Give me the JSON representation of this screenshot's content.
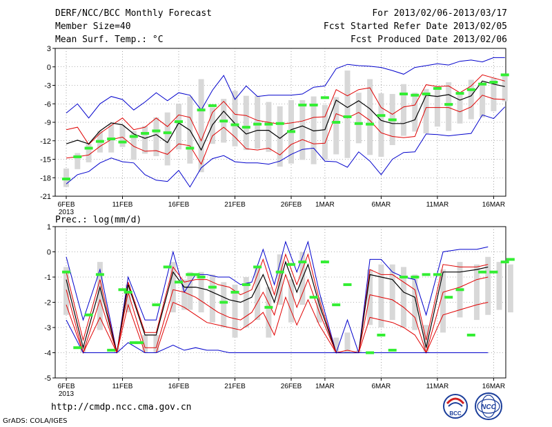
{
  "header": {
    "title": "DERF/NCC/BCC Monthly Forecast",
    "member_size": "Member Size=40",
    "variable": "Mean Surf. Temp.: °C",
    "forecast_period": "For 2013/02/06-2013/03/17",
    "refer_date": "Fcst Started Refer Date 2013/02/05",
    "produced_date": "Fcst Produced Date 2013/02/06"
  },
  "footer": {
    "url": "http://cmdp.ncc.cma.gov.cn",
    "credit": "GrADS: COLA/IGES",
    "logo_left_text": "BCC",
    "logo_right_text": "NCC"
  },
  "colors": {
    "ens_mean": "#000000",
    "spread": "#e00000",
    "extreme": "#0000cc",
    "bar": "#d8d8d8",
    "obs_marker": "#33ee33",
    "grid": "#666666"
  },
  "chart_data": [
    {
      "type": "line",
      "title": "Mean Surf. Temp.: °C",
      "x": "days 0-39 starting 2013/02/06",
      "x_tick_positions": [
        0,
        5,
        10,
        15,
        20,
        23,
        28,
        33,
        38
      ],
      "x_tick_labels": [
        "6FEB",
        "11FEB",
        "16FEB",
        "21FEB",
        "26FEB",
        "1MAR",
        "6MAR",
        "11MAR",
        "16MAR"
      ],
      "x_sub_label": "2013",
      "ylim": [
        -21,
        3
      ],
      "yticks": [
        3,
        0,
        -3,
        -6,
        -9,
        -12,
        -15,
        -18,
        -21
      ],
      "series": [
        {
          "name": "Max",
          "values": [
            -7.5,
            -6,
            -8.3,
            -6,
            -4.8,
            -5.3,
            -7,
            -5.7,
            -4.2,
            -5.5,
            -4.2,
            -4.6,
            -7,
            -3.8,
            -1.4,
            -5.3,
            -3.1,
            -4.8,
            -4.6,
            -4.6,
            -4.6,
            -4.4,
            -3.3,
            -3.1,
            -0.3,
            0.4,
            0.2,
            0.1,
            -0.1,
            -0.6,
            -1.2,
            -0.1,
            0.2,
            0.5,
            0.3,
            0.9,
            1.1,
            0.8,
            1.5,
            1.5
          ]
        },
        {
          "name": "Upper",
          "values": [
            -10.2,
            -9.8,
            -12.6,
            -10.8,
            -9.5,
            -8.3,
            -10.2,
            -9.8,
            -8.3,
            -9.7,
            -7.8,
            -8.2,
            -12,
            -7.4,
            -5.6,
            -7.7,
            -7.9,
            -8.7,
            -9,
            -9.3,
            -9.1,
            -8.8,
            -8.2,
            -8.1,
            -3.7,
            -4.7,
            -3.7,
            -3.4,
            -6.6,
            -7.7,
            -6.5,
            -6.2,
            -2.9,
            -3.2,
            -3.1,
            -4.2,
            -3.1,
            -1.3,
            -1.8,
            -2.3
          ]
        },
        {
          "name": "Mean",
          "values": [
            -12.5,
            -11.9,
            -12.5,
            -10.4,
            -9.1,
            -9.4,
            -10.9,
            -11.6,
            -11,
            -12.3,
            -9.1,
            -10.3,
            -13.5,
            -9.4,
            -7.2,
            -9.2,
            -10.9,
            -10.3,
            -10.3,
            -11.6,
            -10.2,
            -9.6,
            -10.4,
            -10.2,
            -5.4,
            -6.6,
            -5.5,
            -6.8,
            -8.7,
            -9.2,
            -9.2,
            -8.6,
            -4.6,
            -4.8,
            -4.5,
            -5.4,
            -4.7,
            -2.3,
            -2.8,
            -3.2
          ]
        },
        {
          "name": "Lower",
          "values": [
            -14.8,
            -14.6,
            -14.3,
            -12.9,
            -11.8,
            -11.4,
            -12.9,
            -13.7,
            -13.6,
            -14.2,
            -12.5,
            -12.8,
            -15.8,
            -11.2,
            -9.8,
            -11.4,
            -13.3,
            -13.5,
            -13.2,
            -14.3,
            -12.6,
            -11.8,
            -12.5,
            -12.4,
            -7.6,
            -8.3,
            -7.4,
            -8.7,
            -10.7,
            -11.3,
            -11.5,
            -11.3,
            -6.6,
            -6.6,
            -6.6,
            -7.3,
            -6.5,
            -4.6,
            -5.2,
            -5.3
          ]
        },
        {
          "name": "Min",
          "values": [
            -19,
            -17.5,
            -17,
            -15.6,
            -14.8,
            -15.4,
            -15.6,
            -17.5,
            -18.4,
            -18.6,
            -16.8,
            -19.5,
            -16.4,
            -14.9,
            -14.4,
            -15.4,
            -15.6,
            -15.6,
            -15.8,
            -15.3,
            -14.2,
            -13.4,
            -13.2,
            -15.3,
            -15.4,
            -16.3,
            -13.8,
            -15.3,
            -17.5,
            -15,
            -13.9,
            -13.8,
            -10.9,
            -11,
            -11.2,
            -11,
            -10.8,
            -7.8,
            -8.4,
            -6.5
          ]
        },
        {
          "name": "Observed",
          "values": [
            -18.2,
            -14.6,
            -13.2,
            -12.1,
            -11.7,
            -12.2,
            -11.3,
            -10.8,
            -10.4,
            -10.7,
            -8.9,
            -13.2,
            -7,
            -6.3,
            -8.8,
            -9.4,
            -9.8,
            -9.3,
            -9.3,
            -9.2,
            -10.5,
            -6.2,
            -6.2,
            -5,
            -9,
            -8.1,
            -9.2,
            -9.3,
            -7.9,
            -8.6,
            -4.4,
            -4.6,
            -4.4,
            -3.5,
            -6.1,
            -4.3,
            -3.7,
            -2.8,
            -2.5,
            -1.3
          ]
        }
      ],
      "box_high": [
        -16.5,
        -14,
        -12.5,
        -10.4,
        -9.3,
        -9.5,
        -10.4,
        -9.6,
        -8.2,
        -7.4,
        -6,
        -4.8,
        -2,
        -6.6,
        -5.2,
        -3.9,
        -4.7,
        -4.7,
        -5.7,
        -6.4,
        -5.4,
        -5.4,
        -4.8,
        -6.2,
        -4.9,
        -0.6,
        -4.2,
        -2,
        -4.3,
        -4.4,
        -2.8,
        -4.2,
        -3.6,
        -3.2,
        -2.5,
        -4.4,
        -2.1,
        -2.5,
        -1.8,
        -1.3
      ],
      "box_low": [
        -19.5,
        -16.6,
        -15.5,
        -13.9,
        -13.9,
        -13,
        -15.1,
        -14.1,
        -14.5,
        -16,
        -13.4,
        -15.7,
        -17.1,
        -12.5,
        -12.3,
        -12.9,
        -13.5,
        -13.3,
        -13.8,
        -16.2,
        -15.7,
        -15.1,
        -15.8,
        -15.1,
        -14.2,
        -14.8,
        -12.4,
        -14.3,
        -14.6,
        -12.7,
        -11.2,
        -10.5,
        -10.8,
        -9.7,
        -10.4,
        -9.2,
        -8.5,
        -8.2,
        -7.2,
        -5.6
      ]
    },
    {
      "type": "line",
      "title": "Prec.: log(mm/d)",
      "x": "days 0-39 starting 2013/02/06",
      "x_tick_positions": [
        0,
        5,
        10,
        15,
        20,
        23,
        28,
        33,
        38
      ],
      "x_tick_labels": [
        "6FEB",
        "11FEB",
        "16FEB",
        "21FEB",
        "26FEB",
        "1MAR",
        "6MAR",
        "11MAR",
        "16MAR"
      ],
      "x_sub_label": "2013",
      "ylim": [
        -5,
        1
      ],
      "yticks": [
        1,
        0,
        -1,
        -2,
        -3,
        -4,
        -5
      ],
      "series": [
        {
          "name": "Max",
          "values": [
            -0.2,
            -2.7,
            -0.7,
            -4,
            -1,
            -2.7,
            -2.7,
            0,
            -1.6,
            -0.9,
            -0.9,
            -1,
            -1,
            -1.3,
            -1.2,
            0.1,
            -1.3,
            0.4,
            -0.8,
            0.4,
            -1.6,
            -4,
            -2.7,
            -4,
            -0.3,
            -0.3,
            -0.8,
            -1,
            -1.1,
            -2.5,
            0,
            0.1,
            0.1,
            0.2
          ]
        },
        {
          "name": "Upper",
          "values": [
            -0.8,
            -3.5,
            -1.1,
            -4,
            -1.2,
            -3.2,
            -3.2,
            -0.6,
            -1.2,
            -1.1,
            -1.1,
            -1.3,
            -1.4,
            -1.7,
            -1.5,
            -0.3,
            -1.7,
            -0.1,
            -1.3,
            -0.1,
            -1.9,
            -4,
            -3.9,
            -4,
            -0.7,
            -0.9,
            -0.9,
            -1.2,
            -1.5,
            -3.5,
            -0.5,
            -0.6,
            -0.6,
            -0.5
          ]
        },
        {
          "name": "Mean",
          "values": [
            -1.1,
            -3.8,
            -1.4,
            -4,
            -1.3,
            -3.3,
            -3.3,
            -0.8,
            -1.4,
            -1.4,
            -1.5,
            -1.7,
            -1.9,
            -2,
            -1.8,
            -0.9,
            -2,
            -0.4,
            -1.6,
            -0.5,
            -2.1,
            -4,
            -4,
            -4,
            -0.9,
            -1,
            -1.1,
            -1.6,
            -1.8,
            -3.8,
            -0.8,
            -0.8,
            -0.7,
            -0.6
          ]
        },
        {
          "name": "Lower",
          "values": [
            -1.5,
            -4,
            -1.9,
            -4,
            -1.6,
            -3.8,
            -3.8,
            -1.5,
            -1.6,
            -1.8,
            -2.1,
            -2.4,
            -2.6,
            -2.7,
            -2.4,
            -1.6,
            -2.5,
            -0.9,
            -2.2,
            -1.1,
            -2.4,
            -4,
            -4,
            -4,
            -1.7,
            -1.8,
            -1.9,
            -2.2,
            -2.6,
            -4,
            -1.6,
            -1.4,
            -1.1,
            -1
          ]
        },
        {
          "name": "Lower2",
          "values": [
            -2.1,
            -4,
            -2.6,
            -4,
            -2.1,
            -4,
            -4,
            -2,
            -2.2,
            -2.5,
            -2.8,
            -2.9,
            -3,
            -3.1,
            -2.8,
            -2.4,
            -3.3,
            -1.8,
            -2.9,
            -1.9,
            -2.9,
            -4,
            -4,
            -4,
            -2.6,
            -2.7,
            -2.8,
            -3,
            -3.3,
            -4,
            -2.5,
            -2.3,
            -2.1,
            -2
          ]
        },
        {
          "name": "Min",
          "values": [
            -2.7,
            -4,
            -4,
            -4,
            -3.6,
            -4,
            -4,
            -3.7,
            -3.9,
            -3.8,
            -3.9,
            -3.9,
            -4,
            -4,
            -4,
            -4,
            -4,
            -4,
            -4,
            -4,
            -4,
            -4,
            -4,
            -4,
            -4,
            -4,
            -4,
            -4,
            -4,
            -4,
            -4,
            -4,
            -4,
            -4
          ]
        },
        {
          "name": "Observed",
          "values": [
            -0.8,
            -3.8,
            -2.5,
            -0.9,
            -3.9,
            -1.5,
            -1.6,
            -3.6,
            -3.6,
            -2.1,
            -0.6,
            -1.2,
            -0.9,
            -0.9,
            -1,
            -1.4,
            -2,
            -1.6,
            -1.3,
            -0.6,
            -2.2,
            -0.8,
            -0.5,
            -0.4,
            -1.8,
            -0.4,
            -2.1,
            -1.3,
            -4,
            -3.3,
            -3.9,
            -1,
            -1,
            -0.9,
            -0.9,
            -1.8,
            -1.5,
            -3.3,
            -0.8,
            -0.8,
            -0.4,
            -0.3
          ]
        },
        {
          "name": "Observed_days",
          "values": [
            0,
            1,
            2,
            3,
            4,
            5,
            5.5,
            6,
            6.5,
            8,
            9,
            10,
            11,
            11.5,
            12,
            13,
            14,
            15,
            16,
            17,
            18,
            19,
            20,
            21,
            22,
            23,
            24,
            25,
            27,
            28,
            29,
            30,
            31,
            32,
            33,
            34,
            35,
            36,
            37,
            38,
            39,
            39.5
          ]
        }
      ],
      "series_days": [
        0,
        1.5,
        3,
        4.5,
        5.5,
        7,
        8,
        9.5,
        10.5,
        11.5,
        12.5,
        13.5,
        14.5,
        15.5,
        16.5,
        17.5,
        18.5,
        19.5,
        20.5,
        21.5,
        22.5,
        24,
        25,
        26,
        27,
        28,
        29,
        30,
        31,
        32,
        33.5,
        35,
        36.5,
        37.5
      ],
      "box_days": [
        0,
        1.5,
        3,
        4.5,
        5.5,
        7,
        8,
        9.5,
        10.5,
        11,
        12,
        13,
        14,
        15,
        16,
        17,
        18,
        19,
        20,
        21,
        22.5,
        24,
        25,
        26,
        27,
        28,
        29,
        30,
        31,
        32,
        33.5,
        35,
        36.5,
        37.5,
        38.5,
        39.5
      ],
      "box_high": [
        -0.6,
        -3.7,
        -0.4,
        -3.8,
        -1.3,
        -3.3,
        -3.3,
        -0.4,
        -1.1,
        -0.8,
        -0.8,
        -0.9,
        -1.2,
        -1.3,
        -1.0,
        -0.6,
        -1.4,
        -0.1,
        -1.1,
        0.0,
        -1.8,
        -3.4,
        -3.2,
        -3.9,
        -0.7,
        -0.5,
        -0.5,
        -0.6,
        -0.9,
        -2.9,
        -0.7,
        -0.4,
        -0.5,
        -0.2,
        -0.4,
        -0.5
      ],
      "box_low": [
        -2.5,
        -4.0,
        -3.1,
        -4.0,
        -2.4,
        -4.0,
        -4.0,
        -2.4,
        -2.3,
        -2.3,
        -2.4,
        -2.8,
        -3.0,
        -3.4,
        -3.0,
        -2.7,
        -3.4,
        -2.1,
        -2.8,
        -2.1,
        -2.8,
        -4.0,
        -4.0,
        -4.0,
        -2.9,
        -3.0,
        -2.7,
        -3.0,
        -3.1,
        -4.0,
        -3.2,
        -2.6,
        -2.7,
        -2.5,
        -2.3,
        -2.4
      ]
    }
  ]
}
